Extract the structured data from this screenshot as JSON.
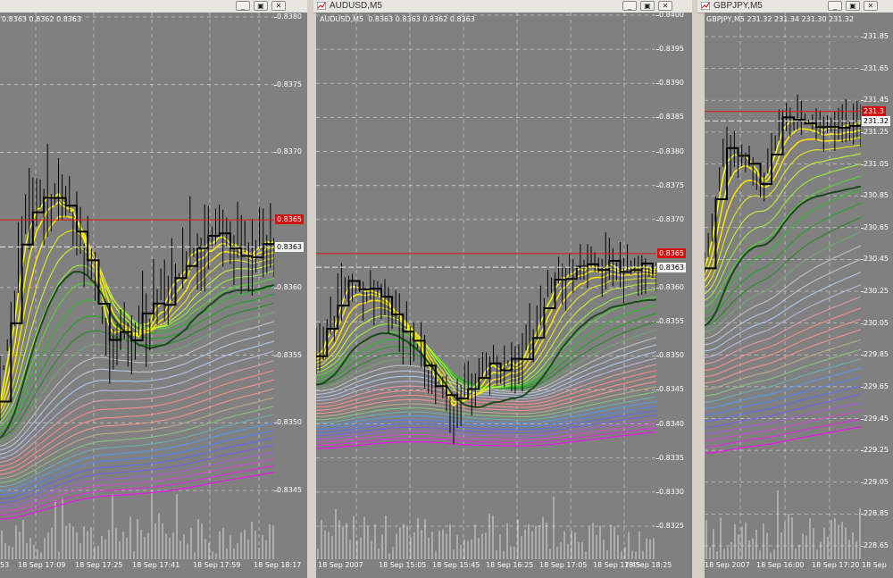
{
  "windows": [
    {
      "id": "w1",
      "title": "",
      "ohlc_line": "0.8363 0.8362 0.8363",
      "y_labels": [
        "0.8380",
        "0.8375",
        "0.8370",
        "0.8365",
        "0.8363",
        "0.8360",
        "0.8355",
        "0.8350",
        "0.8345"
      ],
      "x_labels": [
        "53",
        "18 Sep 17:09",
        "18 Sep 17:25",
        "18 Sep 17:41",
        "18 Sep 17:59",
        "18 Sep 18:17"
      ],
      "bid_label": "0.8365",
      "ask_label": "0.8363",
      "buttons": {
        "minimize": "_",
        "restore": "▣",
        "close": "✕"
      }
    },
    {
      "id": "w2",
      "title": "AUDUSD,M5",
      "ohlc_line": "0.8363 0.8363 0.8362 0.8363",
      "y_labels": [
        "0.8400",
        "0.8395",
        "0.8390",
        "0.8385",
        "0.8380",
        "0.8375",
        "0.8370",
        "0.8365",
        "0.8363",
        "0.8360",
        "0.8355",
        "0.8350",
        "0.8345",
        "0.8340",
        "0.8335",
        "0.8330",
        "0.8325"
      ],
      "x_labels": [
        "18 Sep 2007",
        "18 Sep 15:05",
        "18 Sep 15:45",
        "18 Sep 16:25",
        "18 Sep 17:05",
        "18 Sep 17:45",
        "18 Sep 18:25"
      ],
      "bid_label": "0.8365",
      "ask_label": "0.8363",
      "buttons": {
        "minimize": "_",
        "restore": "▣",
        "close": "✕"
      }
    },
    {
      "id": "w3",
      "title": "GBPJPY,M5",
      "ohlc_line": "GBPJPY,M5  231.32 231.34 231.30 231.32",
      "y_labels": [
        "231.85",
        "231.65",
        "231.45",
        "231.32",
        "231.25",
        "231.05",
        "230.85",
        "230.65",
        "230.45",
        "230.25",
        "230.05",
        "229.85",
        "229.65",
        "229.45",
        "229.25",
        "229.05",
        "228.85",
        "228.65"
      ],
      "x_labels": [
        "18 Sep 2007",
        "18 Sep 16:00",
        "18 Sep 17:20",
        "18 Sep"
      ],
      "bid_label": "231.3",
      "ask_label": "231.32",
      "buttons": {
        "minimize": "_",
        "restore": "▣",
        "close": "✕"
      }
    }
  ],
  "colors": {
    "chart_bg": "#808080",
    "grid": "#c8c8c8",
    "bid_line": "#e01010",
    "price": "#000000",
    "guppy_fast": "#ffff00",
    "guppy_green": "#22c822",
    "guppy_slow": "#1a1aff",
    "guppy_outer": "#ff00ff"
  },
  "chart_data": {
    "type": "line",
    "title": "",
    "note_series": [
      "price",
      "moving-average-ribbon"
    ]
  }
}
